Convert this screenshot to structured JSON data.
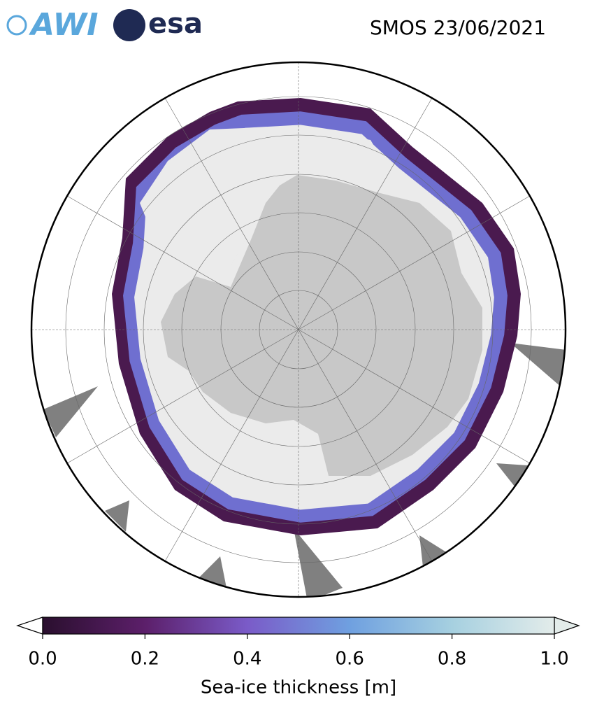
{
  "header": {
    "logo_left": "AWI",
    "logo_right": "esa",
    "title": "SMOS 23/06/2021"
  },
  "colorbar": {
    "label": "Sea-ice thickness [m]",
    "lim": [
      0,
      1
    ],
    "ticks": [
      {
        "value": 0,
        "label": "0.0"
      },
      {
        "value": 0.2,
        "label": "0.2"
      },
      {
        "value": 0.4,
        "label": "0.4"
      },
      {
        "value": 0.6,
        "label": "0.6"
      },
      {
        "value": 0.8,
        "label": "0.8"
      },
      {
        "value": 1,
        "label": "1.0"
      }
    ],
    "colors": [
      "#2a0f2e",
      "#5c1f6a",
      "#7a5bc8",
      "#6fa0e0",
      "#a6d0e0",
      "#e3ecea"
    ]
  }
}
